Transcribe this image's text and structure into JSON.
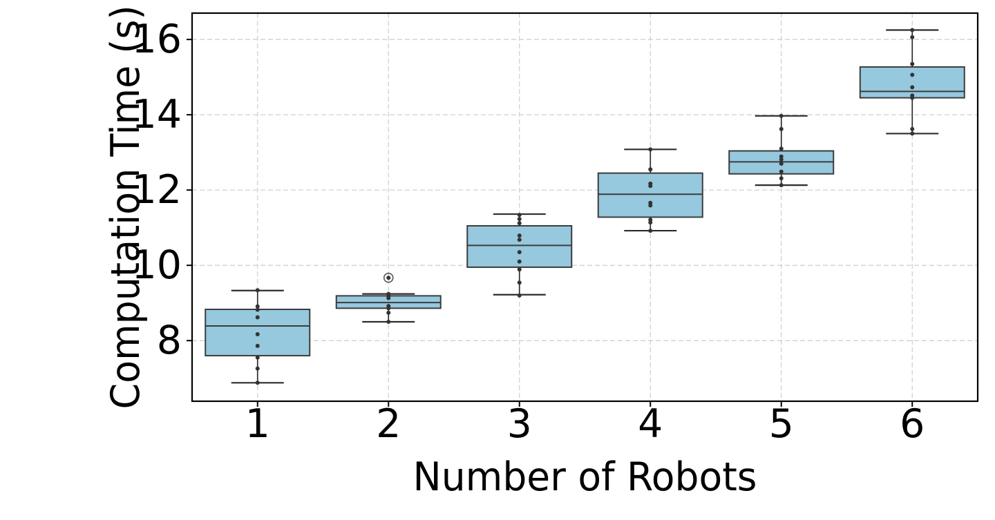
{
  "figure": {
    "background": "#ffffff"
  },
  "chart_data": {
    "type": "box",
    "title": "",
    "xlabel": "Number of Robots",
    "ylabel": "Computation Time (s)",
    "categories": [
      "1",
      "2",
      "3",
      "4",
      "5",
      "6"
    ],
    "y_ticks": [
      "8",
      "10",
      "12",
      "14",
      "16"
    ],
    "y_tick_values": [
      8,
      10,
      12,
      14,
      16
    ],
    "ylim": [
      6.39,
      16.7
    ],
    "grid": {
      "show": true,
      "style": "dashed",
      "axes": "both"
    },
    "legend": "none",
    "boxes": [
      {
        "category": "1",
        "whisker_low": 6.88,
        "q1": 7.6,
        "median": 8.39,
        "q3": 8.83,
        "whisker_high": 9.33,
        "outliers": [],
        "points": [
          9.34,
          8.91,
          8.82,
          8.62,
          8.17,
          7.86,
          7.55,
          7.26,
          6.88
        ]
      },
      {
        "category": "2",
        "whisker_low": 8.5,
        "q1": 8.86,
        "median": 9.01,
        "q3": 9.19,
        "whisker_high": 9.24,
        "outliers": [
          9.67
        ],
        "points": [
          9.67,
          9.24,
          9.19,
          9.13,
          8.92,
          8.86,
          8.74,
          8.5
        ]
      },
      {
        "category": "3",
        "whisker_low": 9.22,
        "q1": 9.95,
        "median": 10.53,
        "q3": 11.05,
        "whisker_high": 11.36,
        "outliers": [],
        "points": [
          11.34,
          11.23,
          11.12,
          10.79,
          10.68,
          10.35,
          10.1,
          9.89,
          9.54,
          9.2
        ]
      },
      {
        "category": "4",
        "whisker_low": 10.92,
        "q1": 11.28,
        "median": 11.89,
        "q3": 12.45,
        "whisker_high": 13.08,
        "outliers": [],
        "points": [
          13.08,
          12.55,
          12.17,
          12.11,
          11.66,
          11.59,
          11.21,
          11.14,
          10.92
        ]
      },
      {
        "category": "5",
        "whisker_low": 12.13,
        "q1": 12.43,
        "median": 12.75,
        "q3": 13.04,
        "whisker_high": 13.97,
        "outliers": [],
        "points": [
          13.97,
          13.62,
          13.1,
          12.89,
          12.81,
          12.7,
          12.49,
          12.31,
          12.13
        ]
      },
      {
        "category": "6",
        "whisker_low": 13.5,
        "q1": 14.45,
        "median": 14.62,
        "q3": 15.27,
        "whisker_high": 16.25,
        "outliers": [],
        "points": [
          16.25,
          16.06,
          15.35,
          15.06,
          14.73,
          14.51,
          14.45,
          13.62,
          13.5
        ]
      }
    ],
    "style": {
      "box_fill": "#96c8de",
      "box_edge": "#3c3c3c",
      "median_color": "#3c3c3c",
      "whisker_color": "#2b2b2b",
      "point_color": "#333333",
      "outlier_edge": "#555555",
      "grid_color": "#cccccc",
      "frame_color": "#000000",
      "text_color": "#000000",
      "background": "#ffffff"
    }
  }
}
